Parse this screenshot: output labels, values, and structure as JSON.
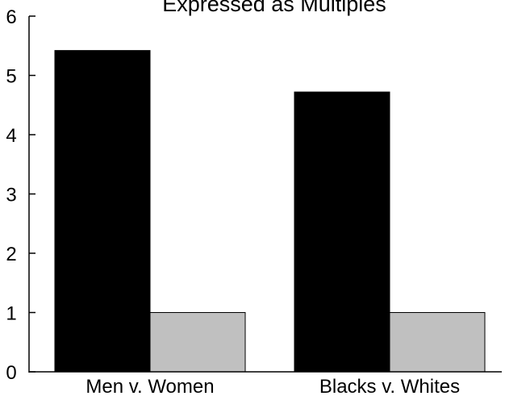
{
  "chart_data": {
    "type": "bar",
    "title": "Expressed as Multiples",
    "categories": [
      "Men v. Women",
      "Blacks v. Whites"
    ],
    "series": [
      {
        "values": [
          5.42,
          4.72
        ]
      },
      {
        "values": [
          1.0,
          1.0
        ]
      }
    ],
    "ylim": [
      0,
      6
    ],
    "yticks": [
      "0",
      "1",
      "2",
      "3",
      "4",
      "5",
      "6"
    ],
    "grid": false,
    "legend": "none",
    "colors": {
      "series_0": "#000000",
      "series_1": "#c0c0c0",
      "bar_stroke": "#000000",
      "axis": "#000000"
    }
  }
}
